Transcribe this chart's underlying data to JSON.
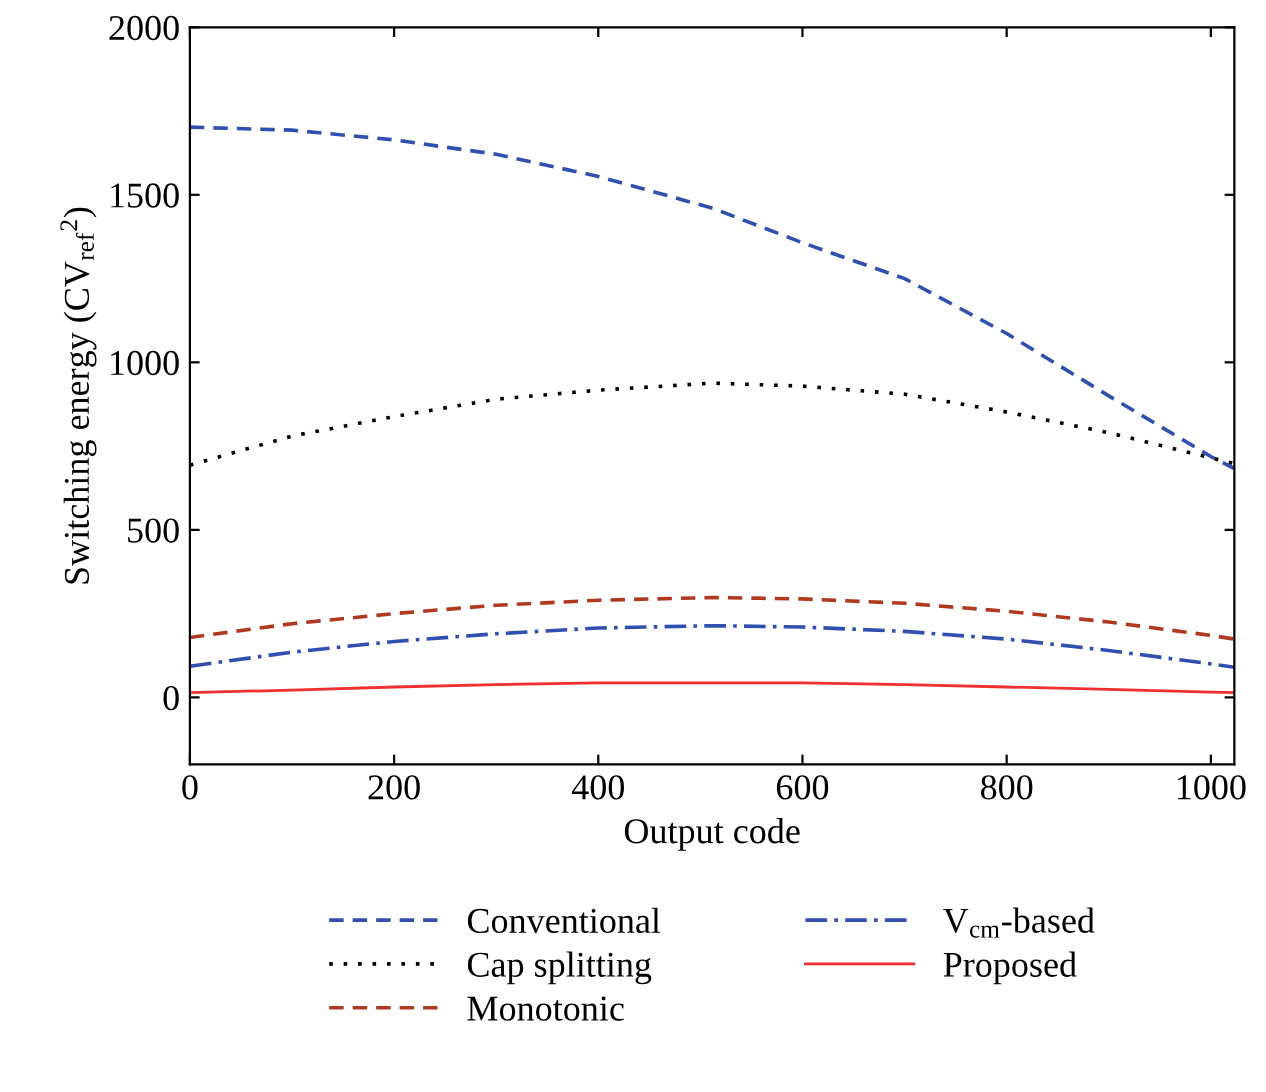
{
  "chart_data": {
    "type": "line",
    "xlabel": "Output code",
    "ylabel": "Switching energy (CV$_{ref}$$^{2}$)",
    "x": [
      0,
      100,
      200,
      300,
      400,
      512,
      600,
      700,
      800,
      900,
      1000,
      1023
    ],
    "xlim": [
      0,
      1023
    ],
    "xticks": [
      0,
      200,
      400,
      600,
      800,
      1000
    ],
    "ylim": [
      -200,
      2000
    ],
    "yticks": [
      0,
      500,
      1000,
      1500,
      2000
    ],
    "grid": false,
    "legend": "bottom",
    "series": [
      {
        "name": "Conventional",
        "color": "#3050b0",
        "line_style": "dashed",
        "values": [
          1702,
          1693,
          1664,
          1621,
          1555,
          1460,
          1357,
          1250,
          1086,
          900,
          719,
          683
        ]
      },
      {
        "name": "Cap splitting",
        "color": "#000000",
        "line_style": "dotted",
        "values": [
          693,
          780,
          838,
          890,
          917,
          938,
          929,
          905,
          852,
          790,
          715,
          698
        ]
      },
      {
        "name": "Monotonic",
        "color": "#b03a20",
        "line_style": "dashed",
        "values": [
          179,
          220,
          250,
          275,
          290,
          298,
          294,
          281,
          257,
          225,
          185,
          174
        ]
      },
      {
        "name": "V$_{cm}$-based",
        "color": "#3050b0",
        "line_style": "dashdot",
        "values": [
          93,
          135,
          167,
          190,
          207,
          214,
          210,
          197,
          174,
          140,
          100,
          90
        ]
      },
      {
        "name": "Proposed",
        "color": "#f03030",
        "line_style": "solid",
        "values": [
          14,
          22,
          31,
          38,
          43,
          43,
          43,
          38,
          31,
          24,
          16,
          14
        ]
      }
    ]
  }
}
